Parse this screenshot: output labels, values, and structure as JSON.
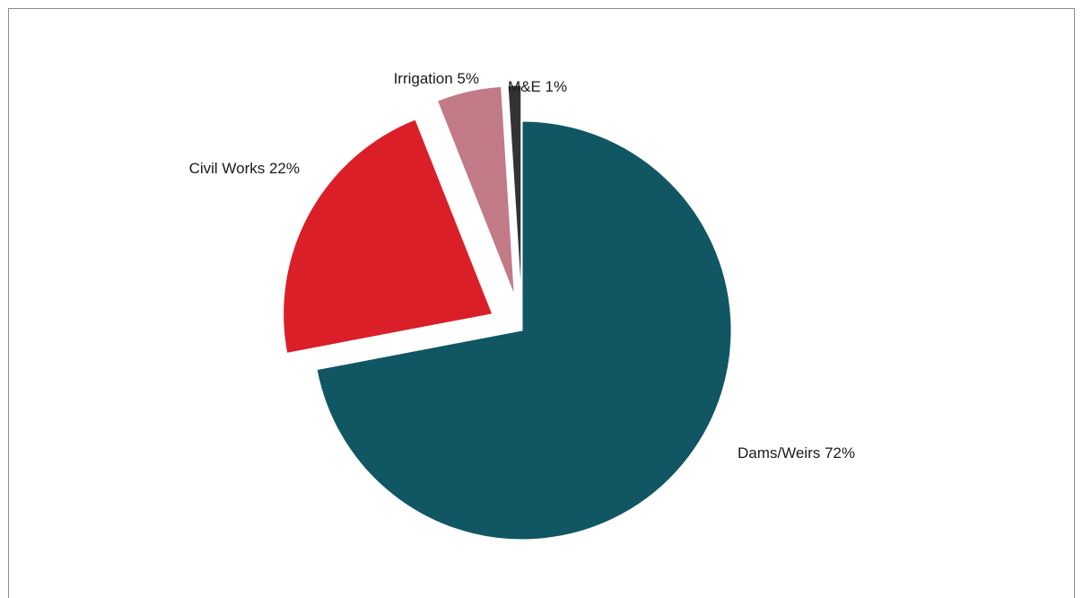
{
  "chart_data": {
    "type": "pie",
    "title": "",
    "slices": [
      {
        "name": "Dams/Weirs",
        "value": 72,
        "label": "Dams/Weirs 72%",
        "color": "#105663"
      },
      {
        "name": "Civil Works",
        "value": 22,
        "label": "Civil Works 22%",
        "color": "#da1f28"
      },
      {
        "name": "Irrigation",
        "value": 5,
        "label": "Irrigation 5%",
        "color": "#c27a86"
      },
      {
        "name": "M&E",
        "value": 1,
        "label": "M&E 1%",
        "color": "#333333"
      }
    ],
    "exploded": true,
    "legend": "none"
  }
}
